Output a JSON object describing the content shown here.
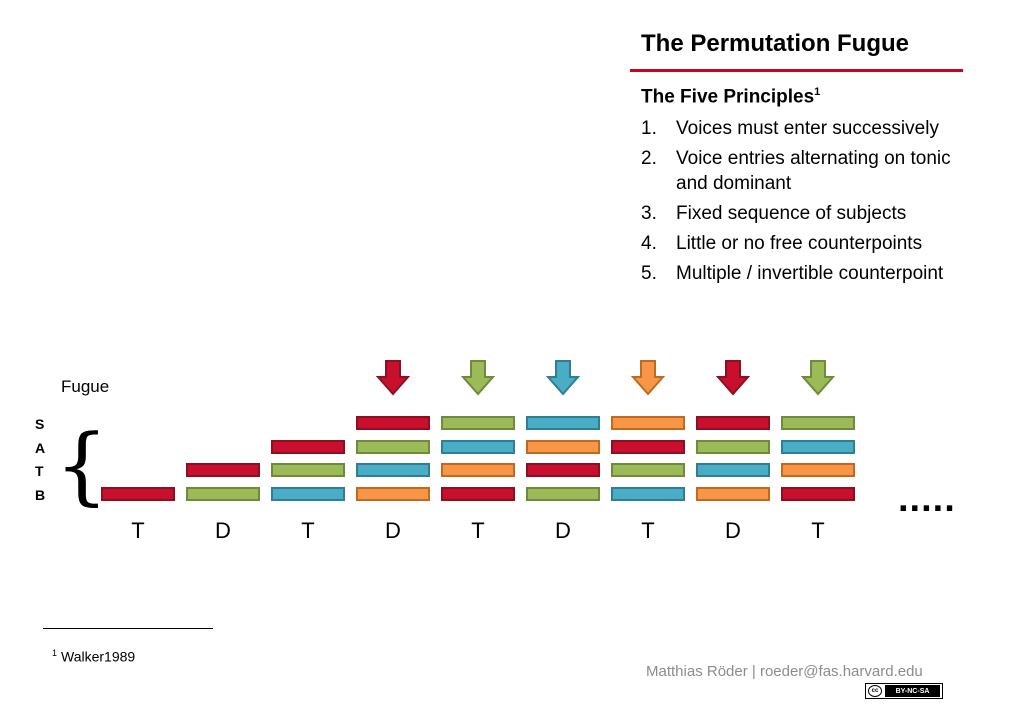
{
  "title": "The Permutation Fugue",
  "principles": {
    "heading": "The Five Principles",
    "heading_ref": "1",
    "items": [
      {
        "num": "1.",
        "text": "Voices must enter successively"
      },
      {
        "num": "2.",
        "text": "Voice entries alternating on tonic and dominant"
      },
      {
        "num": "3.",
        "text": "Fixed sequence of subjects"
      },
      {
        "num": "4.",
        "text": "Little or no free counterpoints"
      },
      {
        "num": "5.",
        "text": "Multiple / invertible counterpoint"
      }
    ]
  },
  "diagram": {
    "label": "Fugue",
    "voices": [
      "S",
      "A",
      "T",
      "B"
    ],
    "entries": [
      "T",
      "D",
      "T",
      "D",
      "T",
      "D",
      "T",
      "D",
      "T"
    ],
    "colors": {
      "red": {
        "fill": "#c8102e",
        "stroke": "#8c1022"
      },
      "green": {
        "fill": "#9bbb59",
        "stroke": "#6f8a3a"
      },
      "blue": {
        "fill": "#4bacc6",
        "stroke": "#2d7f96"
      },
      "orange": {
        "fill": "#f79646",
        "stroke": "#c06a20"
      }
    },
    "sequence": [
      "red",
      "green",
      "blue",
      "orange"
    ],
    "arrow_colors": [
      "red",
      "green",
      "blue",
      "orange",
      "red",
      "green"
    ],
    "arrow_start_column": 3,
    "continuation": "....."
  },
  "footnote": {
    "ref": "1",
    "text": "Walker1989"
  },
  "author": "Matthias Röder | roeder@fas.harvard.edu",
  "license": {
    "cc": "cc",
    "terms": "BY-NC-SA"
  }
}
